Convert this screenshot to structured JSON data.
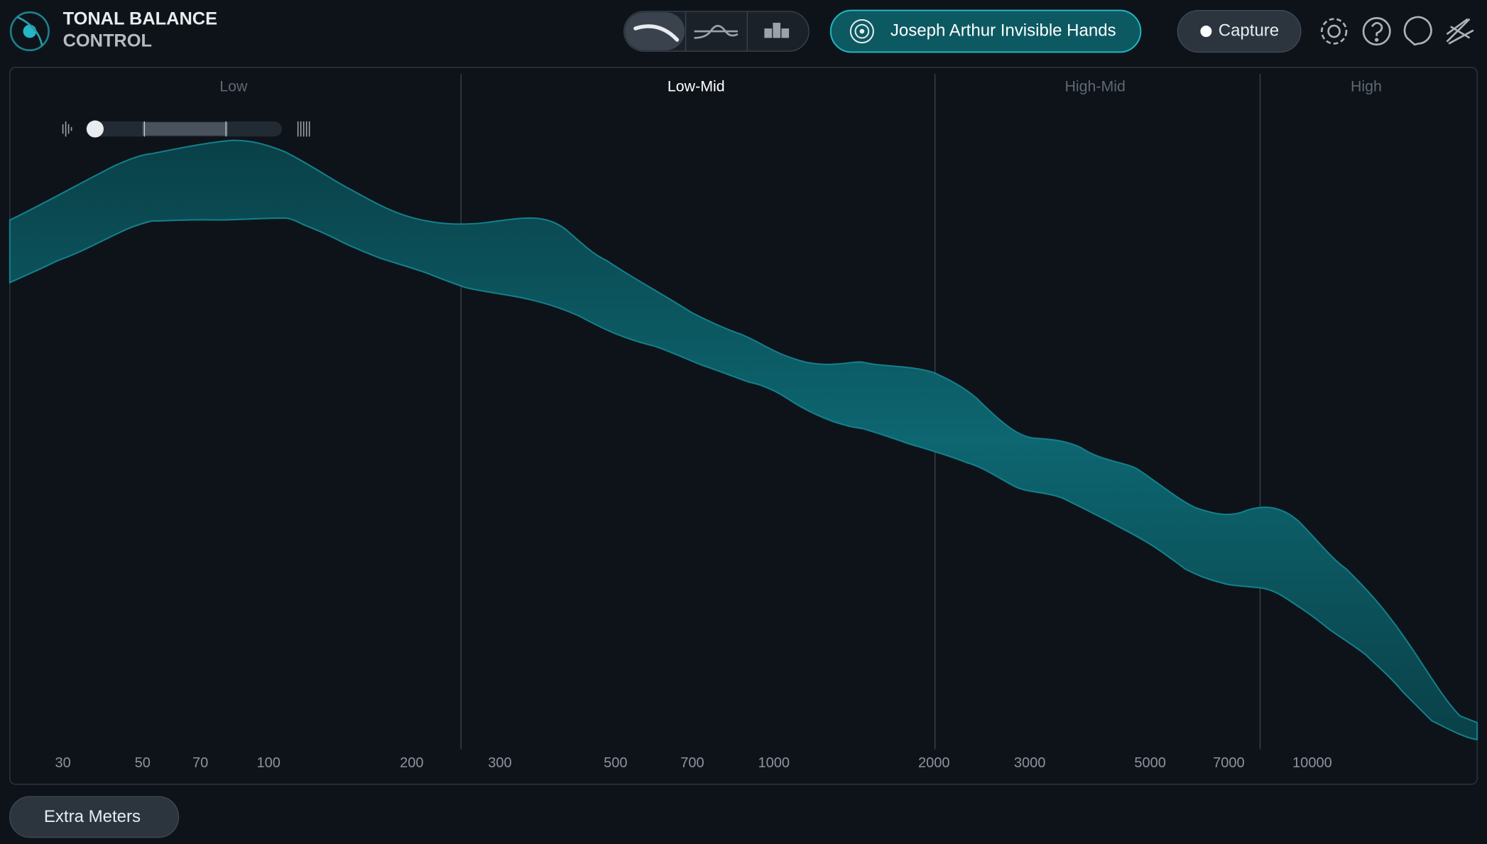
{
  "header": {
    "title_line1": "TONAL BALANCE",
    "title_line2": "CONTROL",
    "reference": "Joseph Arthur Invisible Hands",
    "capture": "Capture"
  },
  "bands": [
    "Low",
    "Low-Mid",
    "High-Mid",
    "High"
  ],
  "frequency_labels": [
    "30",
    "50",
    "70",
    "100",
    "200",
    "300",
    "500",
    "700",
    "1000",
    "2000",
    "3000",
    "5000",
    "7000",
    "10000"
  ],
  "footer": {
    "button": "Extra Meters"
  }
}
